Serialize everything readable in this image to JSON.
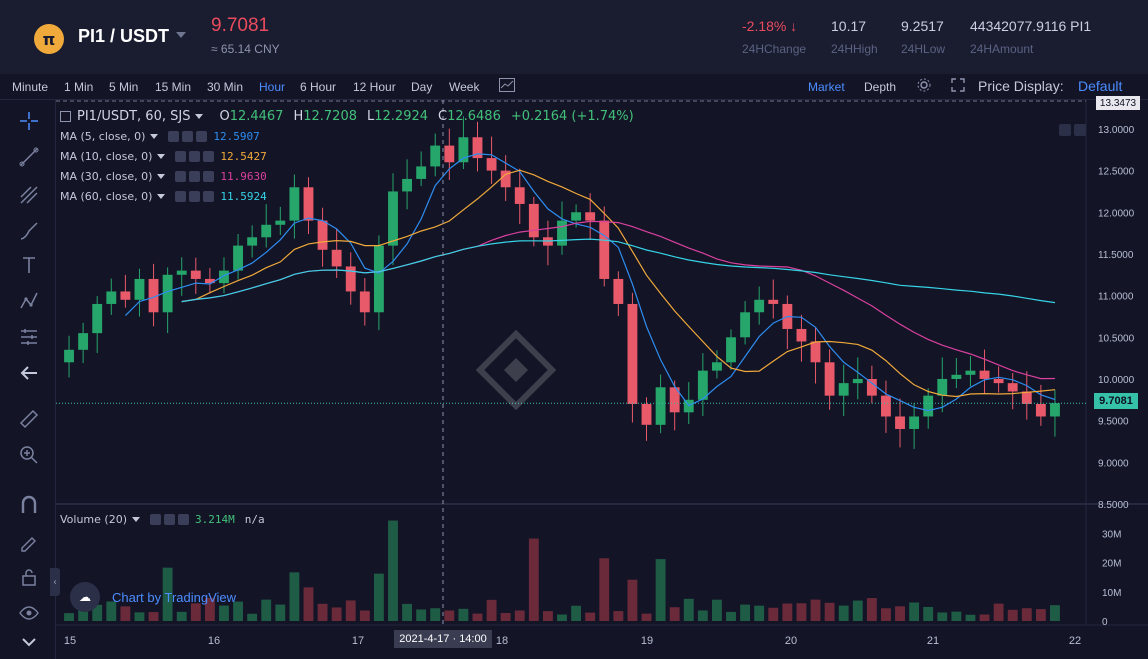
{
  "ticker": {
    "logo_glyph": "π",
    "pair": "PI1 / USDT",
    "last_price": "9.7081",
    "cny": "≈ 65.14 CNY",
    "change": "-2.18%",
    "change_label": "24HChange",
    "high": "10.17",
    "high_label": "24HHigh",
    "low": "9.2517",
    "low_label": "24HLow",
    "amount": "44342077.9116 PI1",
    "amount_label": "24HAmount"
  },
  "toolbar": {
    "intervals": [
      "Minute",
      "1 Min",
      "5 Min",
      "15 Min",
      "30 Min",
      "Hour",
      "6 Hour",
      "12 Hour",
      "Day",
      "Week"
    ],
    "active_interval": "Hour",
    "market": "Market",
    "depth": "Depth",
    "price_display_label": "Price Display:",
    "price_display_value": "Default"
  },
  "rail_icons": [
    "crosshair-icon",
    "trend-line-icon",
    "pitchfork-icon",
    "brush-icon",
    "text-icon",
    "pattern-icon",
    "measure-icon",
    "back-arrow-icon",
    "ruler-icon",
    "zoom-in-icon",
    "magnet-icon",
    "lock-drawing-icon",
    "unlock-icon",
    "eye-icon",
    "chevron-down-icon"
  ],
  "legend": {
    "symbol": "PI1/USDT, 60, SJS",
    "open_label": "O",
    "open": "12.4467",
    "high_label": "H",
    "high": "12.7208",
    "low_label": "L",
    "low": "12.2924",
    "close_label": "C",
    "close": "12.6486",
    "change": "+0.2164 (+1.74%)",
    "ma": [
      {
        "label": "MA (5, close, 0)",
        "value": "12.5907",
        "color": "#2e8df0"
      },
      {
        "label": "MA (10, close, 0)",
        "value": "12.5427",
        "color": "#f0a93b"
      },
      {
        "label": "MA (30, close, 0)",
        "value": "11.9630",
        "color": "#d9419e"
      },
      {
        "label": "MA (60, close, 0)",
        "value": "11.5924",
        "color": "#36d3e6"
      }
    ],
    "volume_label": "Volume (20)",
    "volume_value": "3.214M",
    "volume_na": "n/a"
  },
  "chart_data": {
    "type": "candlestick",
    "price_axis": [
      "13.0000",
      "12.5000",
      "12.0000",
      "11.5000",
      "11.0000",
      "10.5000",
      "10.0000",
      "9.5000",
      "9.0000",
      "8.5000"
    ],
    "price_ylim": [
      8.5,
      13.347
    ],
    "top_price_tag": "13.3473",
    "current_price_tag": "9.7081",
    "volume_axis": [
      "30M",
      "20M",
      "10M",
      "0"
    ],
    "date_axis": [
      "15",
      "16",
      "17",
      "18",
      "19",
      "20",
      "21",
      "22"
    ],
    "crosshair_date": "2021-4-17 · 14:00",
    "up_color": "#26a66b",
    "down_color": "#e8596a",
    "candles_close_approx": [
      10.35,
      10.55,
      10.9,
      11.05,
      10.95,
      11.2,
      10.8,
      11.25,
      11.3,
      11.2,
      11.15,
      11.3,
      11.6,
      11.7,
      11.85,
      11.9,
      12.3,
      11.9,
      11.55,
      11.35,
      11.05,
      10.8,
      11.6,
      12.25,
      12.4,
      12.55,
      12.8,
      12.6,
      12.9,
      12.65,
      12.5,
      12.3,
      12.1,
      11.7,
      11.6,
      11.9,
      12.0,
      11.9,
      11.2,
      10.9,
      9.7,
      9.45,
      9.9,
      9.6,
      9.75,
      10.1,
      10.2,
      10.5,
      10.8,
      10.95,
      10.9,
      10.6,
      10.45,
      10.2,
      9.8,
      9.95,
      10.0,
      9.8,
      9.55,
      9.4,
      9.55,
      9.8,
      10.0,
      10.05,
      10.1,
      10.0,
      9.95,
      9.85,
      9.7,
      9.55,
      9.71
    ],
    "ma_series": [
      {
        "name": "MA (5, close, 0)",
        "color": "#2e8df0"
      },
      {
        "name": "MA (10, close, 0)",
        "color": "#f0a93b"
      },
      {
        "name": "MA (30, close, 0)",
        "color": "#d9419e"
      },
      {
        "name": "MA (60, close, 0)",
        "color": "#36d3e6"
      }
    ]
  },
  "branding": {
    "tv_badge_text": "Chart by TradingView"
  }
}
